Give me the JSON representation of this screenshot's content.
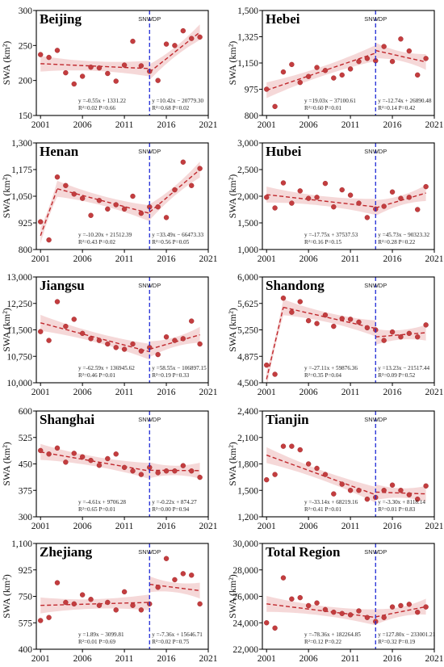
{
  "figure": {
    "break_label": "SNWDP",
    "ylabel": "SWA (km²)"
  },
  "chart_data": [
    {
      "type": "scatter",
      "title": "Beijing",
      "xlim": [
        2000.5,
        2021
      ],
      "xticks": [
        2001,
        2006,
        2011,
        2016,
        2021
      ],
      "xtick_labels": [
        "2001",
        "2006",
        "2011",
        "2016",
        "2021"
      ],
      "ylim": [
        150,
        300
      ],
      "yticks": [
        150,
        200,
        250,
        300
      ],
      "ytick_labels": [
        "150",
        "200",
        "250",
        "300"
      ],
      "x": [
        2001,
        2002,
        2003,
        2004,
        2005,
        2006,
        2007,
        2008,
        2009,
        2010,
        2011,
        2012,
        2013,
        2014,
        2015,
        2016,
        2017,
        2018,
        2019,
        2020
      ],
      "y": [
        237,
        233,
        243,
        211,
        195,
        206,
        219,
        218,
        210,
        199,
        222,
        256,
        221,
        213,
        200,
        252,
        250,
        271,
        260,
        262
      ],
      "trend1": {
        "x": [
          2001,
          2014
        ],
        "y": [
          224,
          217
        ],
        "label": "y =-0.55x + 1331.22",
        "stats": "R²=0.02  P=0.66"
      },
      "trend2": {
        "x": [
          2014,
          2020
        ],
        "y": [
          212,
          269
        ],
        "label": "y =10.42x − 20779.30",
        "stats": "R²=0.68  P=0.02"
      },
      "break_year": 2014
    },
    {
      "type": "scatter",
      "title": "Hebei",
      "xlim": [
        2000.5,
        2021
      ],
      "xticks": [
        2001,
        2006,
        2011,
        2016,
        2021
      ],
      "xtick_labels": [
        "2001",
        "2006",
        "2011",
        "2016",
        "2021"
      ],
      "ylim": [
        800,
        1500
      ],
      "yticks": [
        800,
        975,
        1150,
        1325,
        1500
      ],
      "ytick_labels": [
        "800",
        "975",
        "1,150",
        "1,325",
        "1,500"
      ],
      "x": [
        2001,
        2002,
        2003,
        2004,
        2005,
        2006,
        2007,
        2008,
        2009,
        2010,
        2011,
        2012,
        2013,
        2014,
        2015,
        2016,
        2017,
        2018,
        2019,
        2020
      ],
      "y": [
        975,
        860,
        1090,
        1140,
        1020,
        1060,
        1120,
        1100,
        1050,
        1070,
        1110,
        1160,
        1180,
        1165,
        1260,
        1160,
        1310,
        1230,
        1070,
        1180
      ],
      "trend1": {
        "x": [
          2001,
          2014
        ],
        "y": [
          968,
          1216
        ],
        "label": "y =19.03x − 37100.61",
        "stats": "R²=0.60  P=0.01"
      },
      "trend2": {
        "x": [
          2014,
          2020
        ],
        "y": [
          1233,
          1157
        ],
        "label": "y =-12.74x + 26890.48",
        "stats": "R²=0.14  P=0.42"
      },
      "break_year": 2014
    },
    {
      "type": "scatter",
      "title": "Henan",
      "xlim": [
        2000.5,
        2021
      ],
      "xticks": [
        2001,
        2006,
        2011,
        2016,
        2021
      ],
      "xtick_labels": [
        "2001",
        "2006",
        "2011",
        "2016",
        "2021"
      ],
      "ylim": [
        800,
        1300
      ],
      "yticks": [
        800,
        925,
        1050,
        1175,
        1300
      ],
      "ytick_labels": [
        "800",
        "925",
        "1,050",
        "1,175",
        "1,300"
      ],
      "x": [
        2001,
        2002,
        2003,
        2004,
        2005,
        2006,
        2007,
        2008,
        2009,
        2010,
        2011,
        2012,
        2013,
        2014,
        2015,
        2016,
        2017,
        2018,
        2019,
        2020
      ],
      "y": [
        930,
        845,
        1140,
        1100,
        1060,
        1040,
        960,
        1030,
        990,
        1010,
        990,
        1050,
        970,
        1000,
        1000,
        950,
        1080,
        1210,
        1100,
        1180
      ],
      "trend1": {
        "x": [
          2001,
          2003
        ],
        "y": [
          865,
          1085
        ],
        "label": "y =-10.20x + 21512.39",
        "stats": "R²=0.43  P=0.02"
      },
      "trend1b": {
        "x": [
          2003,
          2014
        ],
        "y": [
          1085,
          970
        ]
      },
      "trend2": {
        "x": [
          2014,
          2020
        ],
        "y": [
          975,
          1175
        ],
        "label": "y =33.49x − 66473.33",
        "stats": "R²=0.56  P=0.05"
      },
      "break_year": 2014
    },
    {
      "type": "scatter",
      "title": "Hubei",
      "xlim": [
        2000.5,
        2021
      ],
      "xticks": [
        2001,
        2006,
        2011,
        2016,
        2021
      ],
      "xtick_labels": [
        "2001",
        "2006",
        "2011",
        "2016",
        "2021"
      ],
      "ylim": [
        1000,
        3000
      ],
      "yticks": [
        1000,
        1500,
        2000,
        2500,
        3000
      ],
      "ytick_labels": [
        "1,000",
        "1,500",
        "2,000",
        "2,500",
        "3,000"
      ],
      "x": [
        2001,
        2002,
        2003,
        2004,
        2005,
        2006,
        2007,
        2008,
        2009,
        2010,
        2011,
        2012,
        2013,
        2014,
        2015,
        2016,
        2017,
        2018,
        2019,
        2020
      ],
      "y": [
        1980,
        1780,
        2250,
        1870,
        2100,
        1960,
        1980,
        2240,
        1800,
        2120,
        2020,
        1870,
        1600,
        1760,
        1810,
        2080,
        1960,
        1980,
        1750,
        2180
      ],
      "trend1": {
        "x": [
          2001,
          2014
        ],
        "y": [
          2030,
          1800
        ],
        "label": "y =-17.75x + 37537.53",
        "stats": "R²=0.16  P=0.15"
      },
      "trend2": {
        "x": [
          2014,
          2020
        ],
        "y": [
          1780,
          2060
        ],
        "label": "y =45.73x − 90323.32",
        "stats": "R²=0.28  P=0.22"
      },
      "break_year": 2014
    },
    {
      "type": "scatter",
      "title": "Jiangsu",
      "xlim": [
        2000.5,
        2021
      ],
      "xticks": [
        2001,
        2006,
        2011,
        2016,
        2021
      ],
      "xtick_labels": [
        "2001",
        "2006",
        "2011",
        "2016",
        "2021"
      ],
      "ylim": [
        10000,
        13000
      ],
      "yticks": [
        10000,
        10750,
        11500,
        12250,
        13000
      ],
      "ytick_labels": [
        "10,000",
        "10,750",
        "11,500",
        "12,250",
        "13,000"
      ],
      "x": [
        2001,
        2002,
        2003,
        2004,
        2005,
        2006,
        2007,
        2008,
        2009,
        2010,
        2011,
        2012,
        2013,
        2014,
        2015,
        2016,
        2017,
        2018,
        2019,
        2020
      ],
      "y": [
        11450,
        11200,
        12300,
        11600,
        11800,
        11400,
        11250,
        11200,
        11100,
        11000,
        10950,
        11100,
        10900,
        11000,
        10800,
        11300,
        11200,
        11250,
        11750,
        11100
      ],
      "trend1": {
        "x": [
          2001,
          2014
        ],
        "y": [
          11700,
          10880
        ],
        "label": "y =-62.59x + 136945.62",
        "stats": "R²=0.46  P=0.01"
      },
      "trend2": {
        "x": [
          2014,
          2020
        ],
        "y": [
          10950,
          11360
        ],
        "label": "y =58.55x − 106897.15",
        "stats": "R²=0.19  P=0.33"
      },
      "break_year": 2014
    },
    {
      "type": "scatter",
      "title": "Shandong",
      "xlim": [
        2000.5,
        2021
      ],
      "xticks": [
        2001,
        2006,
        2011,
        2016,
        2021
      ],
      "xtick_labels": [
        "2001",
        "2006",
        "2011",
        "2016",
        "2021"
      ],
      "ylim": [
        4500,
        6000
      ],
      "yticks": [
        4500,
        4875,
        5250,
        5625,
        6000
      ],
      "ytick_labels": [
        "4,500",
        "4,875",
        "5,250",
        "5,625",
        "6,000"
      ],
      "x": [
        2001,
        2002,
        2003,
        2004,
        2005,
        2006,
        2007,
        2008,
        2009,
        2010,
        2011,
        2012,
        2013,
        2014,
        2015,
        2016,
        2017,
        2018,
        2019,
        2020
      ],
      "y": [
        4750,
        4620,
        5700,
        5500,
        5650,
        5380,
        5340,
        5460,
        5300,
        5410,
        5400,
        5360,
        5280,
        5250,
        5100,
        5220,
        5150,
        5200,
        5150,
        5320
      ],
      "trend1": {
        "x": [
          2001,
          2003
        ],
        "y": [
          4550,
          5570
        ],
        "label": "y =-27.11x + 59876.36",
        "stats": "R²=0.35  P=0.04"
      },
      "trend1b": {
        "x": [
          2003,
          2014
        ],
        "y": [
          5570,
          5270
        ]
      },
      "trend2": {
        "x": [
          2014,
          2020
        ],
        "y": [
          5150,
          5210
        ],
        "label": "y =13.23x − 21517.44",
        "stats": "R²=0.09  P=0.52"
      },
      "break_year": 2014
    },
    {
      "type": "scatter",
      "title": "Shanghai",
      "xlim": [
        2000.5,
        2021
      ],
      "xticks": [
        2001,
        2006,
        2011,
        2016,
        2021
      ],
      "xtick_labels": [
        "2001",
        "2006",
        "2011",
        "2016",
        "2021"
      ],
      "ylim": [
        300,
        600
      ],
      "yticks": [
        300,
        375,
        450,
        525,
        600
      ],
      "ytick_labels": [
        "300",
        "375",
        "450",
        "525",
        "600"
      ],
      "x": [
        2001,
        2002,
        2003,
        2004,
        2005,
        2006,
        2007,
        2008,
        2009,
        2010,
        2011,
        2012,
        2013,
        2014,
        2015,
        2016,
        2017,
        2018,
        2019,
        2020
      ],
      "y": [
        488,
        478,
        495,
        455,
        480,
        470,
        460,
        446,
        465,
        478,
        440,
        430,
        420,
        440,
        425,
        430,
        430,
        445,
        430,
        412
      ],
      "trend1": {
        "x": [
          2001,
          2014
        ],
        "y": [
          484,
          430
        ],
        "label": "y =-4.61x + 9706.28",
        "stats": "R²=0.65  P=0.01"
      },
      "trend2": {
        "x": [
          2014,
          2020
        ],
        "y": [
          432,
          431
        ],
        "label": "y =-0.22x + 874.27",
        "stats": "R²=0.00  P=0.94"
      },
      "break_year": 2014
    },
    {
      "type": "scatter",
      "title": "Tianjin",
      "xlim": [
        2000.5,
        2021
      ],
      "xticks": [
        2001,
        2006,
        2011,
        2016,
        2021
      ],
      "xtick_labels": [
        "2001",
        "2006",
        "2011",
        "2016",
        "2021"
      ],
      "ylim": [
        1200,
        2400
      ],
      "yticks": [
        1200,
        1500,
        1800,
        2100,
        2400
      ],
      "ytick_labels": [
        "1,200",
        "1,500",
        "1,800",
        "2,100",
        "2,400"
      ],
      "x": [
        2001,
        2002,
        2003,
        2004,
        2005,
        2006,
        2007,
        2008,
        2009,
        2010,
        2011,
        2012,
        2013,
        2014,
        2015,
        2016,
        2017,
        2018,
        2019,
        2020
      ],
      "y": [
        1620,
        1680,
        2000,
        2000,
        1960,
        1800,
        1750,
        1680,
        1460,
        1570,
        1500,
        1500,
        1400,
        1420,
        1500,
        1560,
        1500,
        1450,
        1400,
        1550
      ],
      "trend1": {
        "x": [
          2001,
          2014
        ],
        "y": [
          1900,
          1450
        ],
        "label": "y =-33.14x + 68219.16",
        "stats": "R²=0.41  P=0.01"
      },
      "trend2": {
        "x": [
          2014,
          2020
        ],
        "y": [
          1480,
          1460
        ],
        "label": "y =-3.30x + 8118.14",
        "stats": "R²=0.01  P=0.83"
      },
      "break_year": 2014
    },
    {
      "type": "scatter",
      "title": "Zhejiang",
      "xlim": [
        2000.5,
        2021
      ],
      "xticks": [
        2001,
        2006,
        2011,
        2016,
        2021
      ],
      "xtick_labels": [
        "2001",
        "2006",
        "2011",
        "2016",
        "2021"
      ],
      "ylim": [
        400,
        1100
      ],
      "yticks": [
        400,
        575,
        750,
        925,
        1100
      ],
      "ytick_labels": [
        "400",
        "575",
        "750",
        "925",
        "1,100"
      ],
      "x": [
        2001,
        2002,
        2003,
        2004,
        2005,
        2006,
        2007,
        2008,
        2009,
        2010,
        2011,
        2012,
        2013,
        2014,
        2015,
        2016,
        2017,
        2018,
        2019,
        2020
      ],
      "y": [
        590,
        610,
        840,
        710,
        700,
        760,
        730,
        690,
        710,
        660,
        780,
        690,
        660,
        700,
        810,
        1000,
        860,
        900,
        890,
        700
      ],
      "trend1": {
        "x": [
          2001,
          2014
        ],
        "y": [
          690,
          710
        ],
        "label": "y =1.89x − 3099.81",
        "stats": "R²=0.01  P=0.69"
      },
      "trend2": {
        "x": [
          2014,
          2020
        ],
        "y": [
          830,
          788
        ],
        "label": "y =-7.36x + 15646.71",
        "stats": "R²=0.02  P=0.75"
      },
      "break_year": 2014
    },
    {
      "type": "scatter",
      "title": "Total Region",
      "xlim": [
        2000.5,
        2021
      ],
      "xticks": [
        2001,
        2006,
        2011,
        2016,
        2021
      ],
      "xtick_labels": [
        "2001",
        "2006",
        "2011",
        "2016",
        "2021"
      ],
      "ylim": [
        22000,
        30000
      ],
      "yticks": [
        22000,
        24000,
        26000,
        28000,
        30000
      ],
      "ytick_labels": [
        "22,000",
        "24,000",
        "26,000",
        "28,000",
        "30,000"
      ],
      "x": [
        2001,
        2002,
        2003,
        2004,
        2005,
        2006,
        2007,
        2008,
        2009,
        2010,
        2011,
        2012,
        2013,
        2014,
        2015,
        2016,
        2017,
        2018,
        2019,
        2020
      ],
      "y": [
        24000,
        23600,
        27400,
        25800,
        25900,
        25300,
        25500,
        25000,
        24800,
        24700,
        24600,
        24900,
        24400,
        24100,
        24400,
        25200,
        25300,
        25400,
        24800,
        25200
      ],
      "trend1": {
        "x": [
          2001,
          2014
        ],
        "y": [
          25430,
          24410
        ],
        "label": "y =-78.36x + 182264.85",
        "stats": "R²=0.12  P=0.22"
      },
      "trend2": {
        "x": [
          2014,
          2020
        ],
        "y": [
          24450,
          25220
        ],
        "label": "y =127.80x − 233001.21",
        "stats": "R²=0.32  P=0.19"
      },
      "break_year": 2014
    }
  ]
}
